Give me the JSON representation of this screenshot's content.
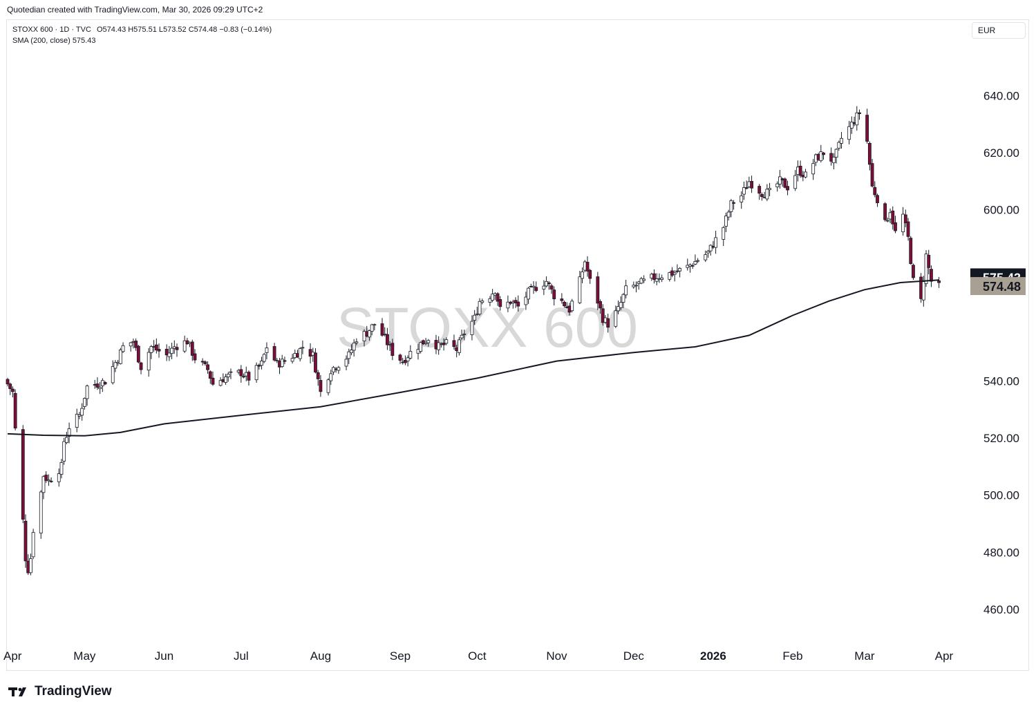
{
  "header": {
    "credit": "Quotedian created with TradingView.com, Mar 30, 2026 09:29 UTC+2"
  },
  "legend": {
    "symbol": "STOXX 600 · 1D · TVC",
    "ohlc": "O574.43  H575.51  L573.52  C574.48  −0.83 (−0.14%)",
    "sma": "SMA (200, close)  575.43"
  },
  "currency_label": "EUR",
  "brand_label": "TradingView",
  "colors": {
    "up_candle": "#ffffff",
    "down_candle": "#7f0d37",
    "candle_border": "#131722",
    "sma_line": "#131722",
    "sma_badge": "#131722",
    "price_badge": "#a9a094",
    "watermark": "#d8d8d8"
  },
  "chart_data": {
    "type": "candlestick",
    "title": "STOXX 600",
    "currency": "EUR",
    "yticks": [
      460,
      480,
      500,
      520,
      540,
      560,
      580,
      600,
      620,
      640
    ],
    "ytick_labels": [
      "460.00",
      "480.00",
      "500.00",
      "520.00",
      "540.00",
      "",
      "",
      "600.00",
      "620.00",
      "640.00"
    ],
    "ylim": [
      452,
      659
    ],
    "xlim": [
      "2025-04-01",
      "2026-04-08"
    ],
    "x_ticks": [
      {
        "date": "2025-04-01",
        "label": "Apr"
      },
      {
        "date": "2025-05-01",
        "label": "May"
      },
      {
        "date": "2025-06-01",
        "label": "Jun"
      },
      {
        "date": "2025-07-01",
        "label": "Jul"
      },
      {
        "date": "2025-08-01",
        "label": "Aug"
      },
      {
        "date": "2025-09-01",
        "label": "Sep"
      },
      {
        "date": "2025-10-01",
        "label": "Oct"
      },
      {
        "date": "2025-11-01",
        "label": "Nov"
      },
      {
        "date": "2025-12-01",
        "label": "Dec"
      },
      {
        "date": "2026-01-01",
        "label": "2026",
        "bold": true
      },
      {
        "date": "2026-02-01",
        "label": "Feb"
      },
      {
        "date": "2026-03-01",
        "label": "Mar"
      },
      {
        "date": "2026-04-01",
        "label": "Apr"
      }
    ],
    "close_path": [
      [
        "2025-04-01",
        539
      ],
      [
        "2025-04-03",
        536
      ],
      [
        "2025-04-04",
        523
      ],
      [
        "2025-04-07",
        491
      ],
      [
        "2025-04-08",
        478
      ],
      [
        "2025-04-09",
        474
      ],
      [
        "2025-04-10",
        478
      ],
      [
        "2025-04-11",
        488
      ],
      [
        "2025-04-14",
        501
      ],
      [
        "2025-04-15",
        507
      ],
      [
        "2025-04-16",
        506
      ],
      [
        "2025-04-17",
        505
      ],
      [
        "2025-04-22",
        510
      ],
      [
        "2025-04-23",
        519
      ],
      [
        "2025-04-24",
        521
      ],
      [
        "2025-04-25",
        524
      ],
      [
        "2025-04-28",
        527
      ],
      [
        "2025-04-29",
        528
      ],
      [
        "2025-05-02",
        538
      ],
      [
        "2025-05-06",
        539
      ],
      [
        "2025-05-09",
        540
      ],
      [
        "2025-05-12",
        545
      ],
      [
        "2025-05-14",
        548
      ],
      [
        "2025-05-16",
        552
      ],
      [
        "2025-05-20",
        554
      ],
      [
        "2025-05-23",
        545
      ],
      [
        "2025-05-27",
        552
      ],
      [
        "2025-06-02",
        549
      ],
      [
        "2025-06-05",
        552
      ],
      [
        "2025-06-10",
        554
      ],
      [
        "2025-06-13",
        548
      ],
      [
        "2025-06-18",
        544
      ],
      [
        "2025-06-20",
        539
      ],
      [
        "2025-06-24",
        541
      ],
      [
        "2025-06-27",
        542
      ],
      [
        "2025-07-01",
        543
      ],
      [
        "2025-07-04",
        541
      ],
      [
        "2025-07-09",
        546
      ],
      [
        "2025-07-11",
        552
      ],
      [
        "2025-07-15",
        546
      ],
      [
        "2025-07-18",
        547
      ],
      [
        "2025-07-23",
        550
      ],
      [
        "2025-07-25",
        552
      ],
      [
        "2025-07-29",
        549
      ],
      [
        "2025-08-01",
        536
      ],
      [
        "2025-08-05",
        544
      ],
      [
        "2025-08-08",
        546
      ],
      [
        "2025-08-12",
        549
      ],
      [
        "2025-08-15",
        555
      ],
      [
        "2025-08-19",
        557
      ],
      [
        "2025-08-22",
        560
      ],
      [
        "2025-08-26",
        555
      ],
      [
        "2025-08-29",
        550
      ],
      [
        "2025-09-02",
        547
      ],
      [
        "2025-09-05",
        550
      ],
      [
        "2025-09-09",
        553
      ],
      [
        "2025-09-12",
        555
      ],
      [
        "2025-09-16",
        552
      ],
      [
        "2025-09-19",
        553
      ],
      [
        "2025-09-23",
        551
      ],
      [
        "2025-09-26",
        557
      ],
      [
        "2025-09-30",
        562
      ],
      [
        "2025-10-02",
        568
      ],
      [
        "2025-10-06",
        570
      ],
      [
        "2025-10-08",
        572
      ],
      [
        "2025-10-10",
        565
      ],
      [
        "2025-10-14",
        568
      ],
      [
        "2025-10-17",
        566
      ],
      [
        "2025-10-21",
        571
      ],
      [
        "2025-10-24",
        573
      ],
      [
        "2025-10-28",
        575
      ],
      [
        "2025-10-31",
        570
      ],
      [
        "2025-11-03",
        568
      ],
      [
        "2025-11-06",
        565
      ],
      [
        "2025-11-10",
        575
      ],
      [
        "2025-11-12",
        582
      ],
      [
        "2025-11-14",
        575
      ],
      [
        "2025-11-17",
        568
      ],
      [
        "2025-11-19",
        562
      ],
      [
        "2025-11-21",
        560
      ],
      [
        "2025-11-25",
        565
      ],
      [
        "2025-11-28",
        572
      ],
      [
        "2025-12-03",
        574
      ],
      [
        "2025-12-08",
        576
      ],
      [
        "2025-12-12",
        577
      ],
      [
        "2025-12-17",
        578
      ],
      [
        "2025-12-22",
        580
      ],
      [
        "2025-12-30",
        585
      ],
      [
        "2026-01-05",
        594
      ],
      [
        "2026-01-08",
        602
      ],
      [
        "2026-01-12",
        605
      ],
      [
        "2026-01-15",
        610
      ],
      [
        "2026-01-20",
        606
      ],
      [
        "2026-01-23",
        606
      ],
      [
        "2026-01-27",
        610
      ],
      [
        "2026-01-30",
        608
      ],
      [
        "2026-02-03",
        614
      ],
      [
        "2026-02-06",
        612
      ],
      [
        "2026-02-10",
        618
      ],
      [
        "2026-02-13",
        620
      ],
      [
        "2026-02-17",
        617
      ],
      [
        "2026-02-20",
        625
      ],
      [
        "2026-02-24",
        630
      ],
      [
        "2026-02-27",
        634
      ],
      [
        "2026-03-02",
        624
      ],
      [
        "2026-03-04",
        608
      ],
      [
        "2026-03-06",
        604
      ],
      [
        "2026-03-09",
        595
      ],
      [
        "2026-03-11",
        600
      ],
      [
        "2026-03-13",
        592
      ],
      [
        "2026-03-16",
        598
      ],
      [
        "2026-03-18",
        590
      ],
      [
        "2026-03-20",
        575
      ],
      [
        "2026-03-23",
        568
      ],
      [
        "2026-03-25",
        584
      ],
      [
        "2026-03-27",
        575
      ],
      [
        "2026-03-30",
        574.48
      ]
    ],
    "sma_200": [
      [
        "2025-04-01",
        521.5
      ],
      [
        "2025-04-15",
        521
      ],
      [
        "2025-05-01",
        520.8
      ],
      [
        "2025-05-15",
        522
      ],
      [
        "2025-06-01",
        525
      ],
      [
        "2025-07-01",
        528
      ],
      [
        "2025-08-01",
        531
      ],
      [
        "2025-09-01",
        536
      ],
      [
        "2025-10-01",
        541
      ],
      [
        "2025-11-01",
        547
      ],
      [
        "2025-12-01",
        550
      ],
      [
        "2025-12-25",
        552
      ],
      [
        "2026-01-15",
        556
      ],
      [
        "2026-02-01",
        563
      ],
      [
        "2026-02-15",
        568
      ],
      [
        "2026-03-01",
        572
      ],
      [
        "2026-03-15",
        574.5
      ],
      [
        "2026-03-30",
        575.43
      ]
    ],
    "last_price": 574.48,
    "last_price_label": "574.48",
    "sma_last": 575.43,
    "sma_last_label": "575.43",
    "series": [
      {
        "name": "STOXX 600 · 1D · TVC"
      },
      {
        "name": "SMA (200, close)"
      }
    ]
  }
}
